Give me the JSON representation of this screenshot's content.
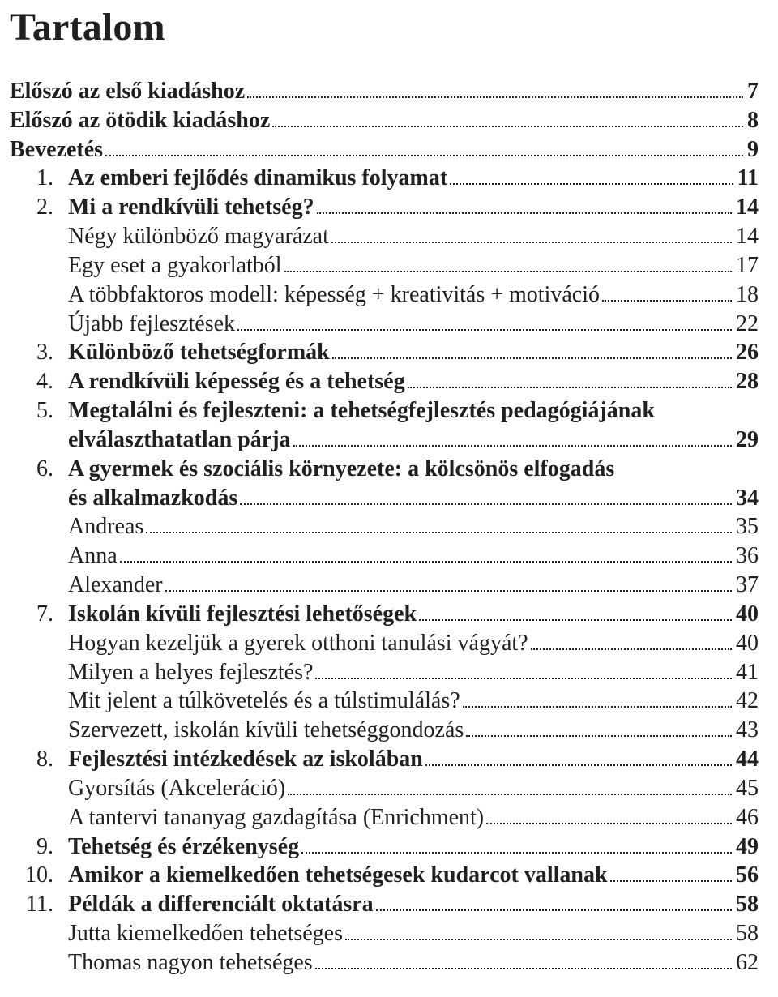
{
  "title": "Tartalom",
  "entries": [
    {
      "num": "",
      "num_bold": false,
      "text": "Előszó az első kiadáshoz",
      "text_bold": true,
      "page": "7",
      "page_bold": true,
      "noindent": true
    },
    {
      "num": "",
      "num_bold": false,
      "text": "Előszó az ötödik kiadáshoz",
      "text_bold": true,
      "page": "8",
      "page_bold": true,
      "noindent": true
    },
    {
      "num": "",
      "num_bold": false,
      "text": "Bevezetés",
      "text_bold": true,
      "page": "9",
      "page_bold": true,
      "noindent": true
    },
    {
      "num": "1.",
      "num_bold": false,
      "text": "Az emberi fejlődés dinamikus folyamat",
      "text_bold": true,
      "page": "11",
      "page_bold": true
    },
    {
      "num": "2.",
      "num_bold": false,
      "text": "Mi a rendkívüli tehetség?",
      "text_bold": true,
      "page": "14",
      "page_bold": true
    },
    {
      "num": "",
      "num_bold": false,
      "text": "Négy különböző magyarázat",
      "text_bold": false,
      "page": "14",
      "page_bold": false
    },
    {
      "num": "",
      "num_bold": false,
      "text": "Egy eset a gyakorlatból",
      "text_bold": false,
      "page": "17",
      "page_bold": false
    },
    {
      "num": "",
      "num_bold": false,
      "text": "A többfaktoros modell: képesség + kreativitás + motiváció",
      "text_bold": false,
      "page": "18",
      "page_bold": false
    },
    {
      "num": "",
      "num_bold": false,
      "text": "Újabb fejlesztések",
      "text_bold": false,
      "page": "22",
      "page_bold": false
    },
    {
      "num": "3.",
      "num_bold": false,
      "text": "Különböző tehetségformák",
      "text_bold": true,
      "page": "26",
      "page_bold": true
    },
    {
      "num": "4.",
      "num_bold": false,
      "text": "A rendkívüli képesség és a tehetség",
      "text_bold": true,
      "page": "28",
      "page_bold": true
    },
    {
      "num": "5.",
      "num_bold": false,
      "wrap": true,
      "text": "Megtalálni és fejleszteni: a tehetségfejlesztés pedagógiájának",
      "text2": "elválaszthatatlan párja",
      "text_bold": true,
      "page": "29",
      "page_bold": true
    },
    {
      "num": "6.",
      "num_bold": false,
      "wrap": true,
      "text": "A gyermek és szociális környezete: a kölcsönös elfogadás",
      "text2": "és alkalmazkodás",
      "text_bold": true,
      "page": "34",
      "page_bold": true
    },
    {
      "num": "",
      "num_bold": false,
      "text": "Andreas",
      "text_bold": false,
      "page": "35",
      "page_bold": false
    },
    {
      "num": "",
      "num_bold": false,
      "text": "Anna",
      "text_bold": false,
      "page": "36",
      "page_bold": false
    },
    {
      "num": "",
      "num_bold": false,
      "text": "Alexander",
      "text_bold": false,
      "page": "37",
      "page_bold": false
    },
    {
      "num": "7.",
      "num_bold": false,
      "text": "Iskolán kívüli fejlesztési lehetőségek",
      "text_bold": true,
      "page": "40",
      "page_bold": true
    },
    {
      "num": "",
      "num_bold": false,
      "text": "Hogyan kezeljük a gyerek otthoni tanulási vágyát?",
      "text_bold": false,
      "page": "40",
      "page_bold": false
    },
    {
      "num": "",
      "num_bold": false,
      "text": "Milyen a helyes fejlesztés?",
      "text_bold": false,
      "page": "41",
      "page_bold": false
    },
    {
      "num": "",
      "num_bold": false,
      "text": "Mit jelent a túlkövetelés és a túlstimulálás?",
      "text_bold": false,
      "page": "42",
      "page_bold": false
    },
    {
      "num": "",
      "num_bold": false,
      "text": "Szervezett, iskolán kívüli tehetséggondozás",
      "text_bold": false,
      "page": "43",
      "page_bold": false
    },
    {
      "num": "8.",
      "num_bold": false,
      "text": "Fejlesztési intézkedések az iskolában",
      "text_bold": true,
      "page": "44",
      "page_bold": true
    },
    {
      "num": "",
      "num_bold": false,
      "text": "Gyorsítás (Akceleráció)",
      "text_bold": false,
      "page": "45",
      "page_bold": false
    },
    {
      "num": "",
      "num_bold": false,
      "text": "A tantervi tananyag gazdagítása (Enrichment)",
      "text_bold": false,
      "page": "46",
      "page_bold": false
    },
    {
      "num": "9.",
      "num_bold": false,
      "text": "Tehetség és érzékenység",
      "text_bold": true,
      "page": "49",
      "page_bold": true
    },
    {
      "num": "10.",
      "num_bold": false,
      "text": "Amikor a kiemelkedően tehetségesek kudarcot vallanak",
      "text_bold": true,
      "page": "56",
      "page_bold": true
    },
    {
      "num": "11.",
      "num_bold": false,
      "text": "Példák a differenciált oktatásra",
      "text_bold": true,
      "page": "58",
      "page_bold": true
    },
    {
      "num": "",
      "num_bold": false,
      "text": "Jutta kiemelkedően tehetséges",
      "text_bold": false,
      "page": "58",
      "page_bold": false
    },
    {
      "num": "",
      "num_bold": false,
      "text": "Thomas nagyon tehetséges",
      "text_bold": false,
      "page": "62",
      "page_bold": false
    }
  ]
}
